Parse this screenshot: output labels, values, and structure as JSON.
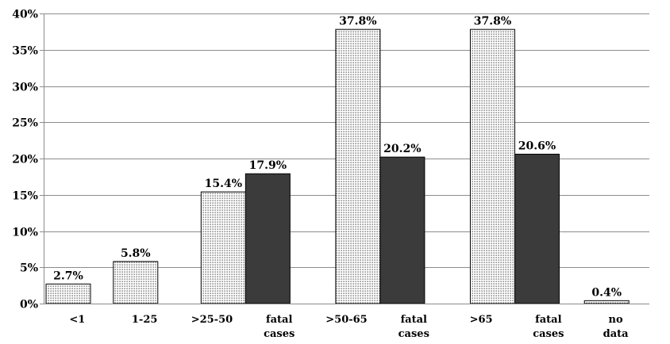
{
  "chart_data": {
    "type": "bar",
    "title": "",
    "xlabel": "",
    "ylabel": "",
    "ylim": [
      0,
      40
    ],
    "yticks": [
      "0%",
      "5%",
      "10%",
      "15%",
      "20%",
      "25%",
      "30%",
      "35%",
      "40%"
    ],
    "grid": true,
    "legend": "none",
    "categories": [
      [
        "<1"
      ],
      [
        "1-25"
      ],
      [
        ">25-50"
      ],
      [
        "fatal",
        "cases"
      ],
      [
        ">50-65"
      ],
      [
        "fatal",
        "cases"
      ],
      [
        ">65"
      ],
      [
        "fatal",
        "cases"
      ],
      [
        "no",
        "data"
      ]
    ],
    "values": [
      2.7,
      5.8,
      15.4,
      17.9,
      37.8,
      20.2,
      37.8,
      20.6,
      0.4
    ],
    "value_labels": [
      "2.7%",
      "5.8%",
      "15.4%",
      "17.9%",
      "37.8%",
      "20.2%",
      "37.8%",
      "20.6%",
      "0.4%"
    ],
    "bar_styles": [
      "dotted",
      "dotted",
      "dotted",
      "solid",
      "dotted",
      "solid",
      "dotted",
      "solid",
      "dotted"
    ],
    "colors": {
      "dotted_fill": "#ffffff",
      "dotted_dot": "#333333",
      "solid_fill": "#3b3b3b",
      "bar_stroke": "#000000"
    }
  }
}
